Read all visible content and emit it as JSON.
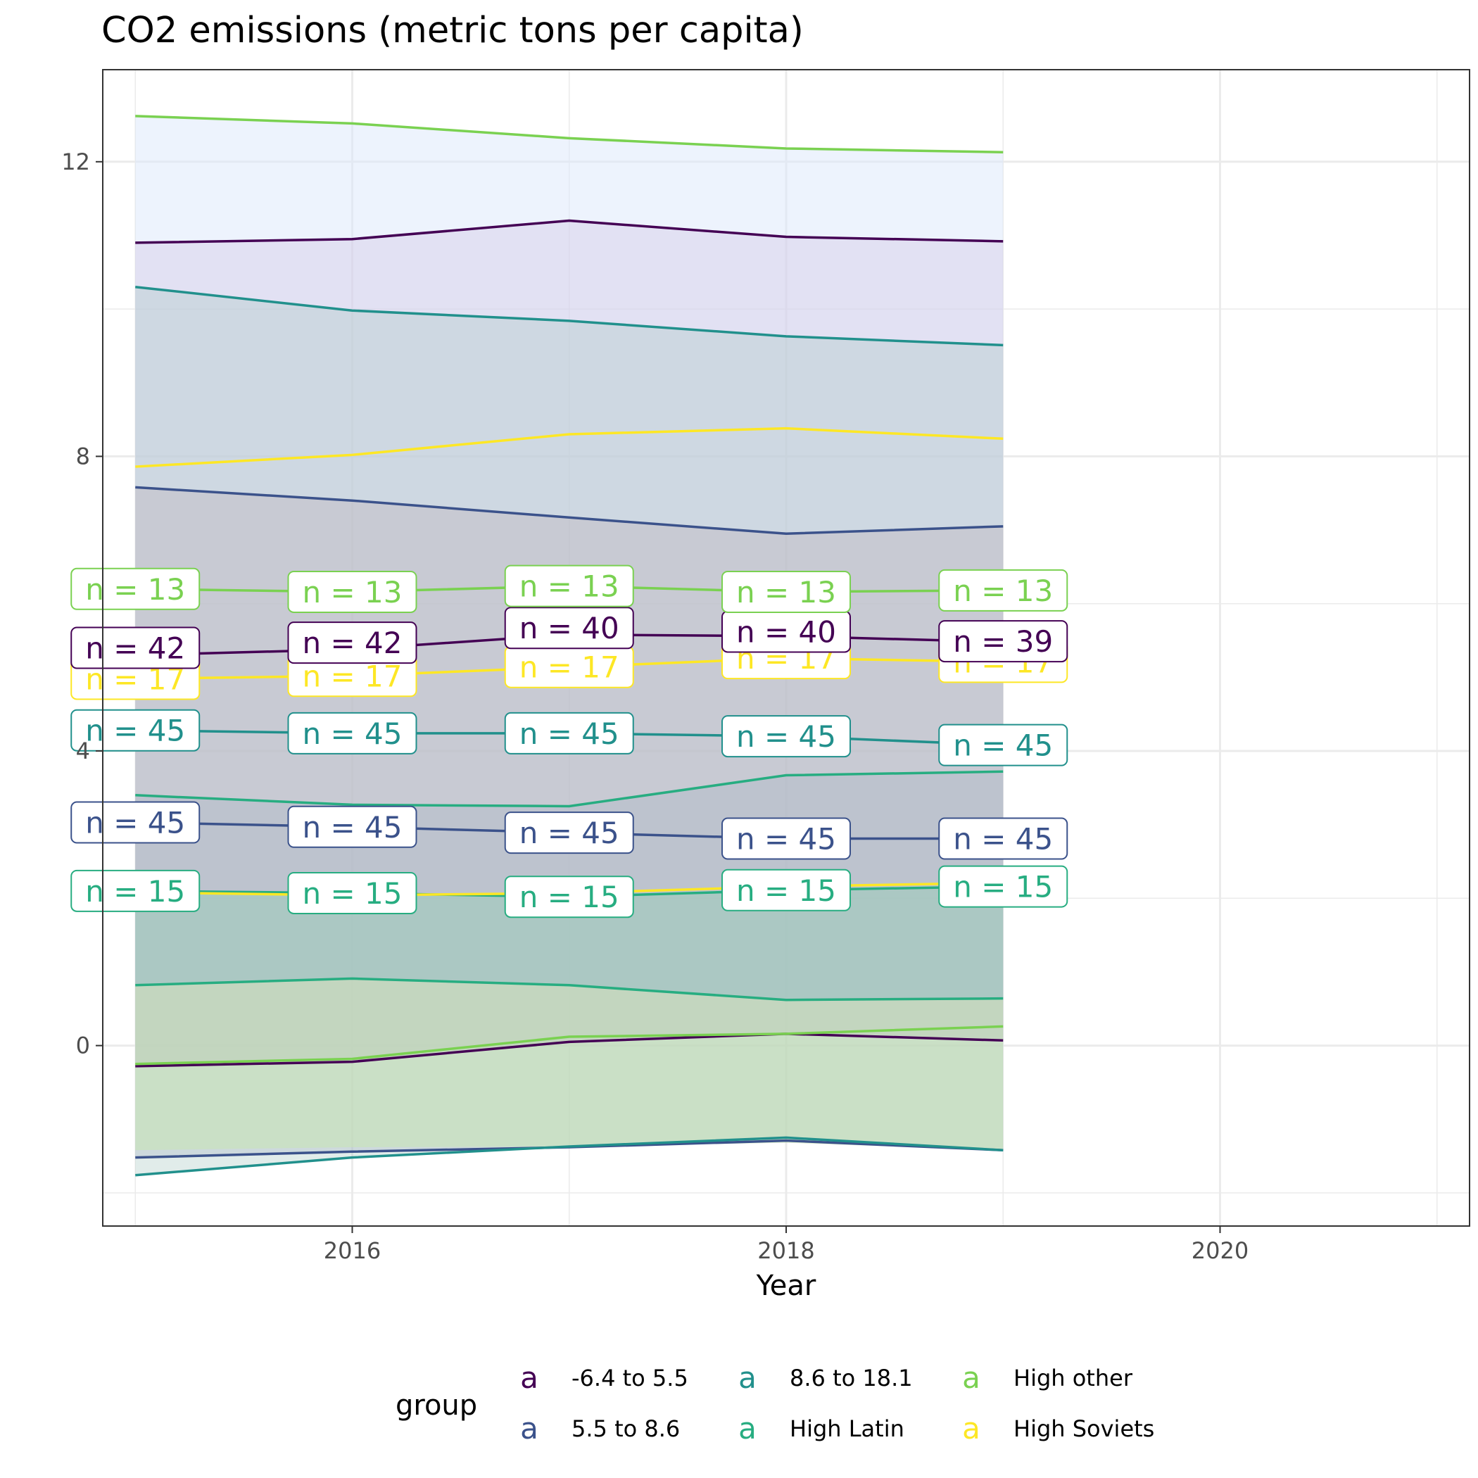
{
  "chart_data": {
    "type": "line",
    "title": "CO2 emissions (metric tons per capita)",
    "xlabel": "Year",
    "ylabel": "",
    "x": [
      2015,
      2016,
      2017,
      2018,
      2019
    ],
    "xlim": [
      2014.85,
      2021.15
    ],
    "ylim": [
      -2.45,
      13.25
    ],
    "xticks": [
      2016,
      2018,
      2020
    ],
    "yticks": [
      0,
      4,
      8,
      12
    ],
    "grid": true,
    "legend": {
      "title": "group",
      "placement": "bottom",
      "key_glyph": "a"
    },
    "series": [
      {
        "name": "-6.4 to 5.5",
        "color": "#440154",
        "upper": [
          10.9,
          10.95,
          11.2,
          10.98,
          10.92
        ],
        "mean": [
          5.3,
          5.38,
          5.58,
          5.56,
          5.48
        ],
        "lower": [
          -0.28,
          -0.22,
          0.05,
          0.16,
          0.07
        ],
        "n_labels": [
          "n = 42",
          "n = 42",
          "n = 40",
          "n = 40",
          "n = 39"
        ],
        "label_y": [
          5.4,
          5.47,
          5.67,
          5.62,
          5.49
        ]
      },
      {
        "name": "5.5 to 8.6",
        "color": "#3B528B",
        "upper": [
          7.58,
          7.4,
          7.17,
          6.95,
          7.05
        ],
        "mean": [
          3.03,
          2.97,
          2.89,
          2.81,
          2.81
        ],
        "lower": [
          -1.52,
          -1.44,
          -1.38,
          -1.29,
          -1.42
        ],
        "n_labels": [
          "n = 45",
          "n = 45",
          "n = 45",
          "n = 45",
          "n = 45"
        ],
        "label_y": [
          3.03,
          2.97,
          2.89,
          2.81,
          2.81
        ]
      },
      {
        "name": "8.6 to 18.1",
        "color": "#21908C",
        "upper": [
          10.3,
          9.98,
          9.84,
          9.63,
          9.51
        ],
        "mean": [
          4.28,
          4.24,
          4.24,
          4.2,
          4.08
        ],
        "lower": [
          -1.76,
          -1.52,
          -1.37,
          -1.25,
          -1.42
        ],
        "n_labels": [
          "n = 45",
          "n = 45",
          "n = 45",
          "n = 45",
          "n = 45"
        ],
        "label_y": [
          4.28,
          4.24,
          4.24,
          4.2,
          4.08
        ]
      },
      {
        "name": "High Latin",
        "color": "#27AD81",
        "upper": [
          3.4,
          3.27,
          3.25,
          3.67,
          3.72
        ],
        "mean": [
          2.1,
          2.07,
          2.02,
          2.11,
          2.16
        ],
        "lower": [
          0.82,
          0.91,
          0.82,
          0.62,
          0.64
        ],
        "n_labels": [
          "n = 15",
          "n = 15",
          "n = 15",
          "n = 15",
          "n = 15"
        ],
        "label_y": [
          2.1,
          2.07,
          2.02,
          2.11,
          2.16
        ]
      },
      {
        "name": "High other",
        "color": "#7AD151",
        "upper": [
          12.62,
          12.52,
          12.32,
          12.18,
          12.13
        ],
        "mean": [
          6.2,
          6.16,
          6.24,
          6.16,
          6.18
        ],
        "lower": [
          -0.25,
          -0.18,
          0.12,
          0.16,
          0.26
        ],
        "n_labels": [
          "n = 13",
          "n = 13",
          "n = 13",
          "n = 13",
          "n = 13"
        ],
        "label_y": [
          6.2,
          6.16,
          6.24,
          6.16,
          6.18
        ]
      },
      {
        "name": "High Soviets",
        "color": "#FDE725",
        "upper": [
          7.86,
          8.02,
          8.3,
          8.38,
          8.24
        ],
        "mean": [
          4.98,
          5.02,
          5.14,
          5.26,
          5.21
        ],
        "lower": [
          2.08,
          2.04,
          2.07,
          2.16,
          2.21
        ],
        "n_labels": [
          "n = 17",
          "n = 17",
          "n = 17",
          "n = 17",
          "n = 17"
        ],
        "label_y": [
          4.98,
          5.02,
          5.14,
          5.26,
          5.21
        ]
      }
    ],
    "ribbons": [
      {
        "color": "#DCE8FB",
        "opacity": 0.5,
        "upper": [
          12.62,
          12.52,
          12.32,
          12.18,
          12.13
        ],
        "lower": [
          -0.28,
          -0.22,
          0.05,
          0.16,
          0.07
        ]
      },
      {
        "color": "#CDBFE0",
        "opacity": 0.35,
        "upper": [
          10.9,
          10.95,
          11.2,
          10.98,
          10.92
        ],
        "lower": [
          -0.28,
          -0.22,
          0.05,
          0.16,
          0.07
        ]
      },
      {
        "color": "#A9C9C4",
        "opacity": 0.35,
        "upper": [
          10.3,
          9.98,
          9.84,
          9.63,
          9.51
        ],
        "lower": [
          -1.76,
          -1.52,
          -1.37,
          -1.25,
          -1.42
        ]
      },
      {
        "color": "#B9A9AE",
        "opacity": 0.3,
        "upper": [
          7.58,
          7.4,
          7.17,
          6.95,
          7.05
        ],
        "lower": [
          -0.28,
          -0.22,
          0.05,
          0.16,
          0.07
        ]
      },
      {
        "color": "#A9B8C6",
        "opacity": 0.35,
        "upper": [
          3.4,
          3.27,
          3.25,
          3.67,
          3.72
        ],
        "lower": [
          -1.52,
          -1.44,
          -1.38,
          -1.29,
          -1.42
        ]
      },
      {
        "color": "#9DCCB9",
        "opacity": 0.55,
        "upper": [
          2.1,
          2.07,
          2.02,
          2.11,
          2.16
        ],
        "lower": [
          0.82,
          0.91,
          0.82,
          0.62,
          0.64
        ]
      },
      {
        "color": "#C8E5B2",
        "opacity": 0.55,
        "upper": [
          0.82,
          0.91,
          0.82,
          0.62,
          0.64
        ],
        "lower": [
          -1.42,
          -1.38,
          -1.37,
          -1.32,
          -1.42
        ]
      }
    ]
  }
}
